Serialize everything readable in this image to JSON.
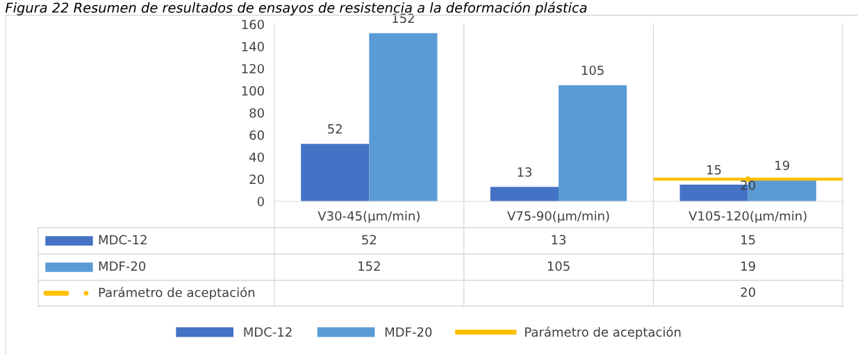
{
  "chart_data": {
    "type": "bar",
    "title": "Figura 22 Resumen de resultados de ensayos de resistencia a la deformación plástica",
    "categories": [
      "V30-45(µm/min)",
      "V75-90(µm/min)",
      "V105-120(µm/min)"
    ],
    "series": [
      {
        "name": "MDC-12",
        "color": "#4472c4",
        "values": [
          52,
          13,
          15
        ],
        "value_labels": [
          "52",
          "13",
          "15"
        ]
      },
      {
        "name": "MDF-20",
        "color": "#5b9bd5",
        "values": [
          152,
          105,
          19
        ],
        "value_labels": [
          "152",
          "105",
          "19"
        ]
      },
      {
        "name": "Parámetro de aceptación",
        "type": "line",
        "color": "#ffc000",
        "marker": "circle",
        "values": [
          null,
          null,
          20
        ],
        "value_labels": [
          null,
          null,
          "20"
        ]
      }
    ],
    "ylim": [
      0,
      160
    ],
    "yticks": [
      0,
      20,
      40,
      60,
      80,
      100,
      120,
      140,
      160
    ],
    "annotations": [
      "52",
      "13",
      "15",
      "152",
      "105",
      "19",
      "20"
    ],
    "data_labels": true,
    "ref_lines": [
      {
        "axis": "y",
        "value": 20,
        "color": "#ffc000"
      }
    ],
    "grid": false,
    "legend": "bottom"
  }
}
